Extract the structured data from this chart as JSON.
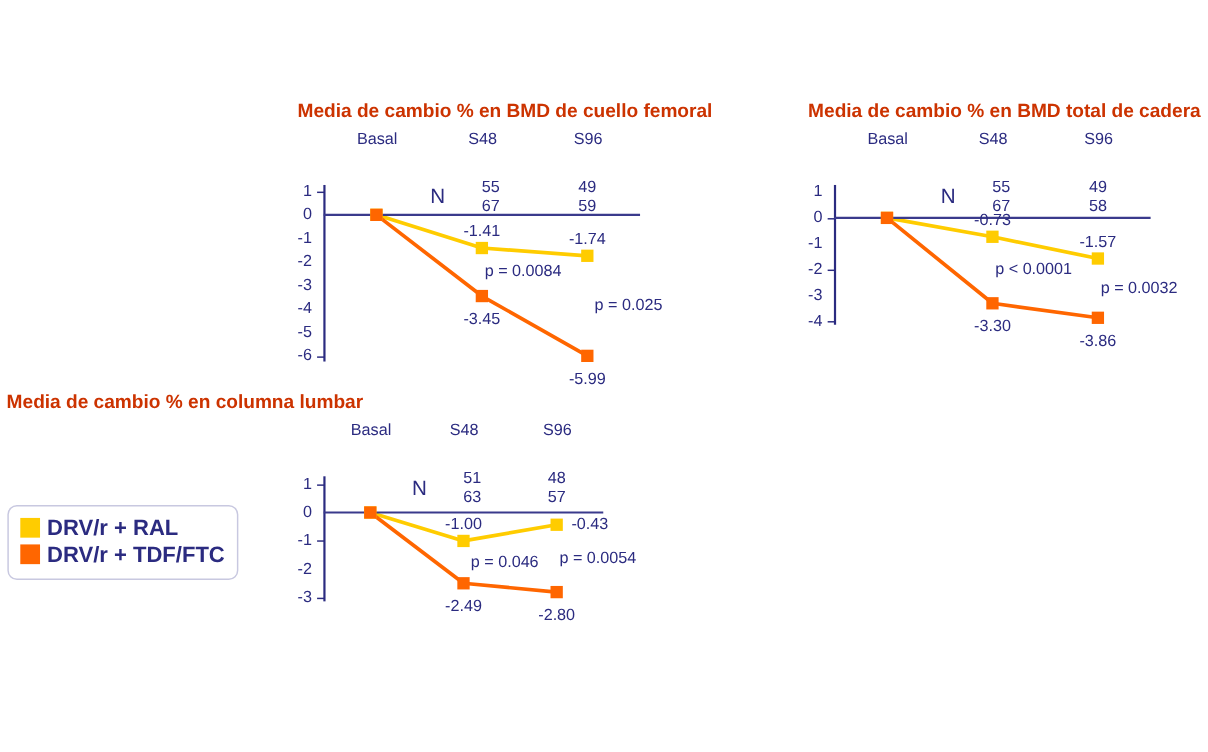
{
  "chart_data": [
    {
      "type": "line",
      "title": "Media de cambio % en BMD  de cuello femoral",
      "categories": [
        "Basal",
        "S48",
        "S96"
      ],
      "marker": "square",
      "grid": false,
      "series": [
        {
          "color": "#ffcc00",
          "values": [
            0,
            -1.41,
            -1.74
          ],
          "value_labels": [
            null,
            "-1.41",
            "-1.74"
          ]
        },
        {
          "color": "#ff6600",
          "values": [
            0,
            -3.45,
            -5.99
          ],
          "value_labels": [
            null,
            "-3.45",
            "-5.99"
          ]
        }
      ],
      "ylim": [
        -6.2,
        1.3
      ],
      "yticks": [
        1,
        0,
        -1,
        -2,
        -3,
        -4,
        -5,
        -6
      ],
      "ref_lines": [
        {
          "axis": "y",
          "value": 0,
          "color": "#3a3a8c"
        }
      ],
      "annotations": [
        "N",
        "55",
        "49",
        "67",
        "59",
        "p = 0.0084",
        "p = 0.025"
      ]
    },
    {
      "type": "line",
      "title": "Media de cambio % en BMD total de cadera",
      "categories": [
        "Basal",
        "S48",
        "S96"
      ],
      "marker": "square",
      "grid": false,
      "series": [
        {
          "color": "#ffcc00",
          "values": [
            0,
            -0.73,
            -1.57
          ],
          "value_labels": [
            null,
            "-0.73",
            "-1.57"
          ]
        },
        {
          "color": "#ff6600",
          "values": [
            0,
            -3.3,
            -3.86
          ],
          "value_labels": [
            null,
            "-3.30",
            "-3.86"
          ]
        }
      ],
      "ylim": [
        -4.1,
        1.3
      ],
      "yticks": [
        1,
        0,
        -1,
        -2,
        -3,
        -4
      ],
      "ref_lines": [
        {
          "axis": "y",
          "value": 0,
          "color": "#3a3a8c"
        }
      ],
      "annotations": [
        "N",
        "55",
        "49",
        "67",
        "58",
        "p < 0.0001",
        "p = 0.0032"
      ]
    },
    {
      "type": "line",
      "title": "Media de cambio %  en columna lumbar",
      "categories": [
        "Basal",
        "S48",
        "S96"
      ],
      "marker": "square",
      "grid": false,
      "legend": "left",
      "series": [
        {
          "name": "DRV/r + RAL",
          "color": "#ffcc00",
          "values": [
            0,
            -1.0,
            -0.43
          ],
          "value_labels": [
            null,
            "-1.00",
            "-0.43"
          ]
        },
        {
          "name": "DRV/r + TDF/FTC",
          "color": "#ff6600",
          "values": [
            0,
            -2.49,
            -2.8
          ],
          "value_labels": [
            null,
            "-2.49",
            "-2.80"
          ]
        }
      ],
      "ylim": [
        -3.1,
        1.3
      ],
      "yticks": [
        1,
        0,
        -1,
        -2,
        -3
      ],
      "ref_lines": [
        {
          "axis": "y",
          "value": 0,
          "color": "#3a3a8c"
        }
      ],
      "annotations": [
        "N",
        "51",
        "48",
        "63",
        "57",
        "p = 0.046",
        "p = 0.0054"
      ]
    }
  ]
}
